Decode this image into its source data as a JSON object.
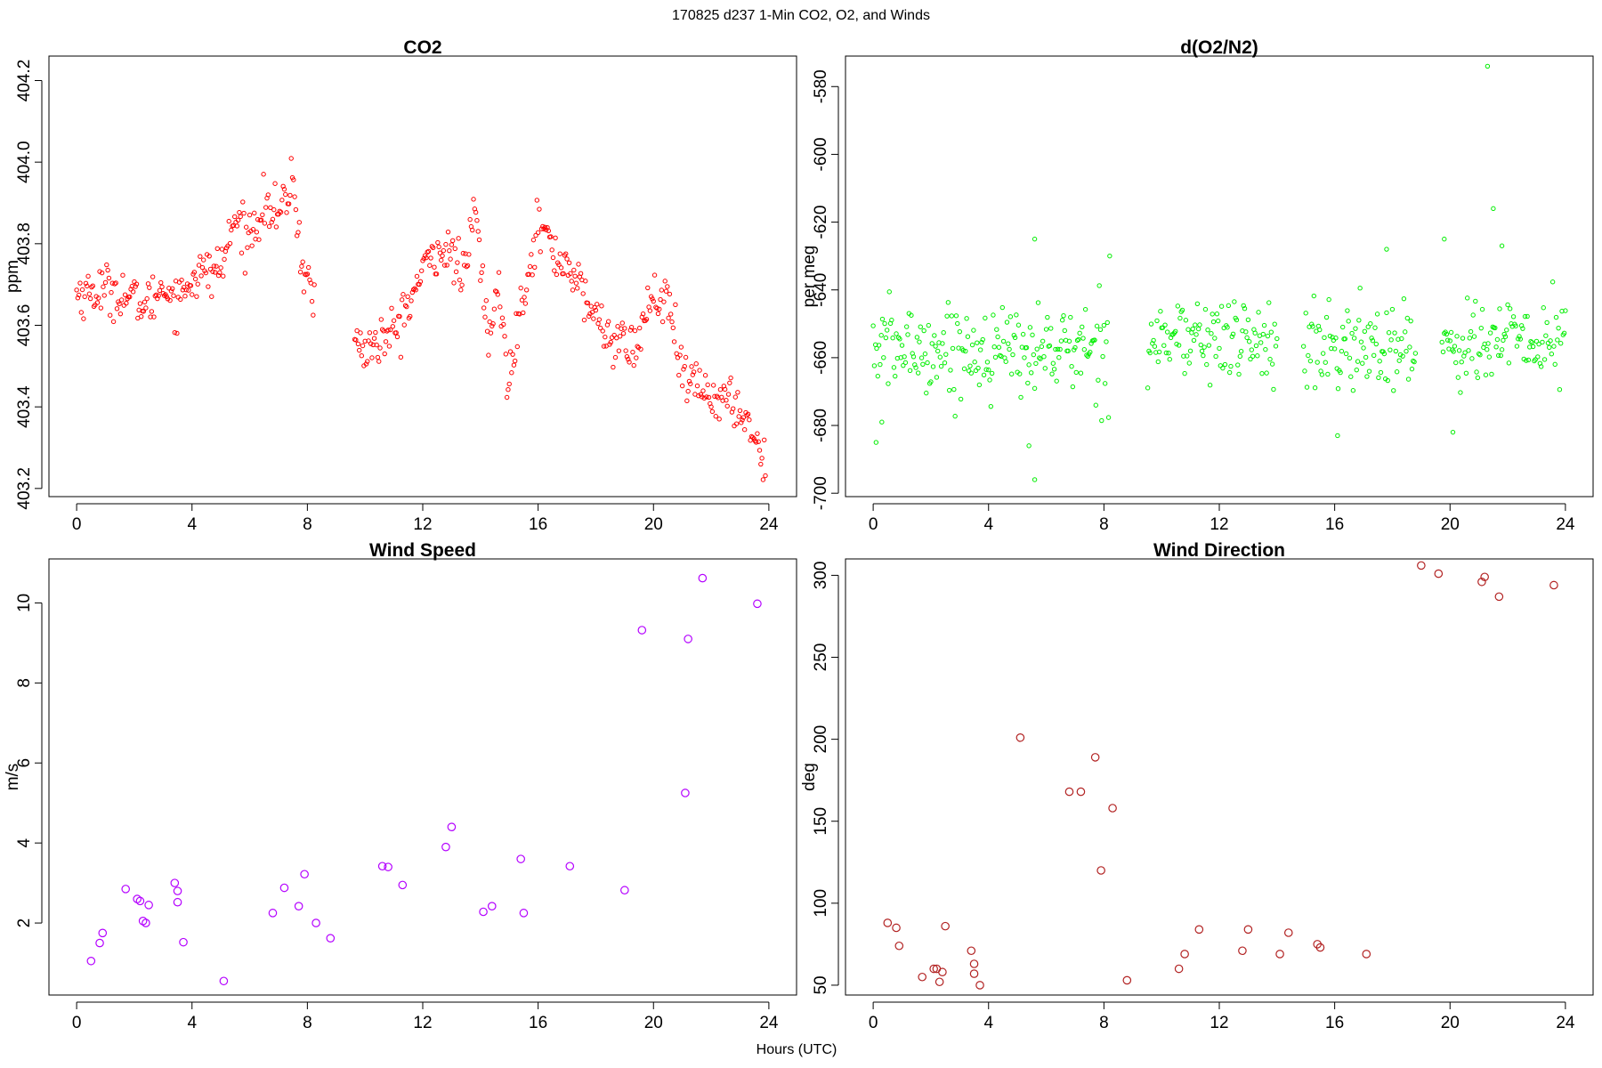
{
  "figure": {
    "title": "170825   d237   1-Min CO2, O2, and Winds",
    "xlabel": "Hours (UTC)"
  },
  "chart_data": [
    {
      "type": "scatter",
      "title": "CO2",
      "xlabel": "",
      "ylabel": "ppm",
      "xlim": [
        -0.96,
        24.96
      ],
      "ylim": [
        403.18,
        404.26
      ],
      "xticks": [
        0,
        4,
        8,
        12,
        16,
        20,
        24
      ],
      "yticks": [
        403.2,
        403.4,
        403.6,
        403.8,
        404.0,
        404.2
      ],
      "ytick_labels": [
        "403.2",
        "403.4",
        "403.6",
        "403.8",
        "404.0",
        "404.2"
      ],
      "color": "#ff0000",
      "marker_size": "small",
      "gaps": [
        [
          8.25,
          9.6
        ]
      ],
      "profile_x": [
        0,
        0.5,
        1.0,
        1.5,
        2.0,
        2.5,
        3.0,
        3.5,
        4.0,
        4.5,
        5.0,
        5.5,
        6.0,
        6.5,
        7.0,
        7.5,
        7.8,
        8.0,
        8.2,
        9.6,
        10.0,
        10.5,
        11.0,
        11.5,
        12.0,
        12.5,
        13.0,
        13.5,
        13.8,
        14.3,
        14.6,
        15.0,
        15.3,
        15.6,
        16.0,
        16.3,
        16.6,
        17.0,
        17.5,
        18.0,
        18.5,
        19.0,
        19.5,
        19.8,
        20.5,
        21.0,
        21.5,
        22.0,
        22.5,
        23.0,
        23.5,
        23.9
      ],
      "profile_y": [
        403.68,
        403.68,
        403.69,
        403.68,
        403.66,
        403.65,
        403.7,
        403.66,
        403.72,
        403.73,
        403.74,
        403.86,
        403.82,
        403.9,
        403.86,
        403.96,
        403.75,
        403.72,
        403.66,
        403.57,
        403.54,
        403.56,
        403.58,
        403.65,
        403.73,
        403.79,
        403.77,
        403.72,
        403.9,
        403.55,
        403.7,
        403.45,
        403.62,
        403.72,
        403.85,
        403.82,
        403.76,
        403.76,
        403.68,
        403.62,
        403.57,
        403.55,
        403.55,
        403.66,
        403.66,
        403.47,
        403.45,
        403.43,
        403.41,
        403.4,
        403.33,
        403.25
      ],
      "noise_sd": 0.03
    },
    {
      "type": "scatter",
      "title": "d(O2/N2)",
      "xlabel": "",
      "ylabel": "per meg",
      "xlim": [
        -0.96,
        24.96
      ],
      "ylim": [
        -701,
        -571
      ],
      "xticks": [
        0,
        4,
        8,
        12,
        16,
        20,
        24
      ],
      "yticks": [
        -700,
        -680,
        -660,
        -640,
        -620,
        -600,
        -580
      ],
      "ytick_labels": [
        "-700",
        "-680",
        "-660",
        "-640",
        "-620",
        "-600",
        "-580"
      ],
      "color": "#00ee00",
      "marker_size": "small",
      "gaps": [
        [
          8.2,
          9.5
        ],
        [
          14.0,
          14.9
        ],
        [
          18.8,
          19.7
        ]
      ],
      "profile_x": [
        0,
        4,
        8,
        9.5,
        14,
        15,
        18.8,
        19.7,
        24
      ],
      "profile_y": [
        -657,
        -658,
        -657,
        -654,
        -655,
        -658,
        -656,
        -656,
        -655
      ],
      "noise_sd": 6.5,
      "outliers": [
        [
          0.1,
          -685
        ],
        [
          0.3,
          -679
        ],
        [
          5.6,
          -696
        ],
        [
          5.4,
          -686
        ],
        [
          5.6,
          -625
        ],
        [
          8.2,
          -630
        ],
        [
          16.1,
          -683
        ],
        [
          20.1,
          -682
        ],
        [
          21.3,
          -574
        ],
        [
          21.5,
          -616
        ],
        [
          21.8,
          -627
        ],
        [
          17.8,
          -628
        ],
        [
          19.8,
          -625
        ]
      ]
    },
    {
      "type": "scatter",
      "title": "Wind Speed",
      "xlabel": "",
      "ylabel": "m/s",
      "xlim": [
        -0.96,
        24.96
      ],
      "ylim": [
        0.2,
        11.1
      ],
      "xticks": [
        0,
        4,
        8,
        12,
        16,
        20,
        24
      ],
      "yticks": [
        2,
        4,
        6,
        8,
        10
      ],
      "ytick_labels": [
        "2",
        "4",
        "6",
        "8",
        "10"
      ],
      "color": "#b400ff",
      "marker_size": "large",
      "x": [
        0.5,
        0.8,
        0.9,
        1.7,
        2.1,
        2.2,
        2.3,
        2.4,
        2.5,
        3.4,
        3.5,
        3.5,
        3.7,
        5.1,
        6.8,
        7.2,
        7.7,
        7.9,
        8.3,
        8.8,
        10.6,
        10.8,
        11.3,
        12.8,
        13.0,
        14.1,
        14.4,
        15.4,
        15.5,
        17.1,
        19.0,
        19.6,
        21.1,
        21.2,
        21.7,
        23.6
      ],
      "y": [
        1.05,
        1.5,
        1.75,
        2.85,
        2.6,
        2.55,
        2.05,
        2.0,
        2.45,
        3.0,
        2.8,
        2.52,
        1.52,
        0.55,
        2.25,
        2.88,
        2.42,
        3.22,
        2.0,
        1.62,
        3.42,
        3.4,
        2.95,
        3.9,
        4.4,
        2.28,
        2.42,
        3.6,
        2.25,
        3.42,
        2.82,
        9.32,
        5.25,
        9.1,
        10.62,
        9.98
      ]
    },
    {
      "type": "scatter",
      "title": "Wind Direction",
      "xlabel": "",
      "ylabel": "deg",
      "xlim": [
        -0.96,
        24.96
      ],
      "ylim": [
        44,
        310
      ],
      "xticks": [
        0,
        4,
        8,
        12,
        16,
        20,
        24
      ],
      "yticks": [
        50,
        100,
        150,
        200,
        250,
        300
      ],
      "ytick_labels": [
        "50",
        "100",
        "150",
        "200",
        "250",
        "300"
      ],
      "color": "#b22222",
      "marker_size": "large",
      "x": [
        0.5,
        0.8,
        0.9,
        1.7,
        2.1,
        2.2,
        2.3,
        2.4,
        2.5,
        3.4,
        3.5,
        3.5,
        3.7,
        5.1,
        6.8,
        7.2,
        7.7,
        7.9,
        8.3,
        8.8,
        10.6,
        10.8,
        11.3,
        12.8,
        13.0,
        14.1,
        14.4,
        15.4,
        15.5,
        17.1,
        19.0,
        19.6,
        21.1,
        21.2,
        21.7,
        23.6
      ],
      "y": [
        88,
        85,
        74,
        55,
        60,
        60,
        52,
        58,
        86,
        71,
        57,
        63,
        50,
        201,
        168,
        168,
        189,
        120,
        158,
        53,
        60,
        69,
        84,
        71,
        84,
        69,
        82,
        75,
        73,
        69,
        306,
        301,
        296,
        299,
        287,
        294
      ]
    }
  ]
}
